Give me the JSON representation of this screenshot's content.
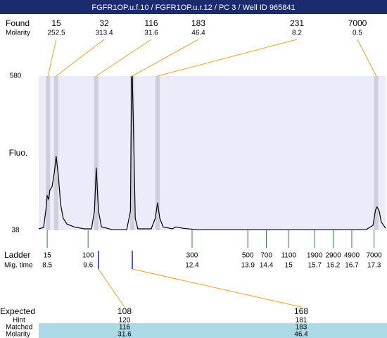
{
  "header": {
    "title": "FGFR1OP.u.f.10 / FGFR1OP.u.r.12 / PC 3 / Well ID 965841"
  },
  "found": {
    "label": "Found",
    "molarity_label": "Molarity",
    "sizes": [
      15,
      32,
      116,
      183,
      231,
      7000
    ],
    "molarities": [
      252.5,
      313.4,
      31.6,
      46.4,
      8.2,
      0.5
    ]
  },
  "chart_data": {
    "type": "line",
    "y_label": "Fluo.",
    "xlim": [
      8.27,
      17.61
    ],
    "ylim": [
      38,
      580
    ],
    "yticks": [
      38,
      580
    ],
    "peak_times": [
      8.52,
      8.74,
      9.82,
      10.79,
      11.47,
      17.36
    ],
    "x": [
      8.27,
      8.4,
      8.46,
      8.5,
      8.54,
      8.57,
      8.63,
      8.69,
      8.74,
      8.8,
      8.86,
      8.93,
      9.03,
      9.22,
      9.5,
      9.69,
      9.77,
      9.82,
      9.88,
      9.96,
      10.26,
      10.64,
      10.74,
      10.77,
      10.79,
      10.83,
      10.87,
      10.94,
      11.3,
      11.41,
      11.47,
      11.53,
      11.62,
      11.87,
      11.96,
      12.15,
      12.53,
      17.08,
      17.27,
      17.34,
      17.38,
      17.44,
      17.49,
      17.61
    ],
    "values": [
      43,
      48,
      105,
      159,
      147,
      179,
      191,
      241,
      298,
      229,
      130,
      80,
      60,
      50,
      43,
      43,
      105,
      258,
      105,
      50,
      40,
      40,
      105,
      575,
      580,
      352,
      80,
      43,
      43,
      80,
      135,
      80,
      50,
      43,
      50,
      45,
      40,
      40,
      55,
      110,
      120,
      105,
      68,
      45
    ]
  },
  "ladder": {
    "label": "Ladder",
    "mig_label": "Mig. time",
    "sizes": [
      15,
      100,
      300,
      500,
      700,
      1100,
      1900,
      2900,
      4900,
      7000
    ],
    "mig_times": [
      8.5,
      9.6,
      12.4,
      13.9,
      14.4,
      15,
      15.7,
      16.2,
      16.7,
      17.3
    ]
  },
  "expected": {
    "label": "Expected",
    "hint_label": "Hint",
    "matched_label": "Matched",
    "molarity_label": "Molarity",
    "columns": [
      {
        "expected": 108,
        "hint": 120,
        "matched": 116,
        "molarity": 31.6
      },
      {
        "expected": 168,
        "hint": 181,
        "matched": 183,
        "molarity": 46.4
      }
    ]
  }
}
